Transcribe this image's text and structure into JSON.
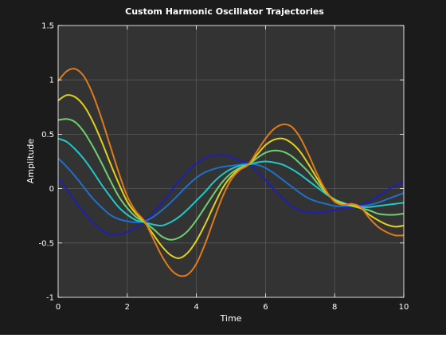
{
  "colors": {
    "figure_bg": "#1b1b1b",
    "axes_bg": "#333333",
    "grid": "#585858",
    "text": "#ffffff"
  },
  "chart_data": {
    "type": "line",
    "title": "Custom Harmonic Oscillator Trajectories",
    "xlabel": "Time",
    "ylabel": "Amplitude",
    "xlim": [
      0,
      10
    ],
    "ylim": [
      -1,
      1.5
    ],
    "xticks": [
      0,
      2,
      4,
      6,
      8,
      10
    ],
    "xtick_labels": [
      "0",
      "2",
      "4",
      "6",
      "8",
      "10"
    ],
    "yticks": [
      -1,
      -0.5,
      0,
      0.5,
      1,
      1.5
    ],
    "ytick_labels": [
      "-1",
      "-0.5",
      "0",
      "0.5",
      "1",
      "1.5"
    ],
    "grid": true,
    "legend": "none",
    "x": [
      0,
      0.25,
      0.5,
      0.75,
      1,
      1.25,
      1.5,
      1.75,
      2,
      2.25,
      2.5,
      2.75,
      3,
      3.25,
      3.5,
      3.75,
      4,
      4.25,
      4.5,
      4.75,
      5,
      5.25,
      5.5,
      5.75,
      6,
      6.25,
      6.5,
      6.75,
      7,
      7.25,
      7.5,
      7.75,
      8,
      8.25,
      8.5,
      8.75,
      9,
      9.25,
      9.5,
      9.75,
      10
    ],
    "series": [
      {
        "color": "#1f1fb3",
        "values": [
          0.1,
          -0.01,
          -0.12,
          -0.22,
          -0.31,
          -0.38,
          -0.42,
          -0.42,
          -0.4,
          -0.36,
          -0.3,
          -0.22,
          -0.13,
          -0.03,
          0.07,
          0.16,
          0.23,
          0.28,
          0.31,
          0.31,
          0.29,
          0.26,
          0.23,
          0.16,
          0.08,
          -0.01,
          -0.09,
          -0.16,
          -0.2,
          -0.22,
          -0.22,
          -0.21,
          -0.2,
          -0.18,
          -0.17,
          -0.15,
          -0.12,
          -0.07,
          -0.02,
          0.03,
          0.06
        ]
      },
      {
        "color": "#1f6fcc",
        "values": [
          0.28,
          0.2,
          0.11,
          0.01,
          -0.09,
          -0.17,
          -0.24,
          -0.28,
          -0.3,
          -0.31,
          -0.3,
          -0.26,
          -0.2,
          -0.13,
          -0.05,
          0.03,
          0.1,
          0.15,
          0.18,
          0.2,
          0.21,
          0.22,
          0.23,
          0.22,
          0.19,
          0.14,
          0.08,
          0.02,
          -0.04,
          -0.09,
          -0.12,
          -0.14,
          -0.16,
          -0.16,
          -0.16,
          -0.16,
          -0.15,
          -0.13,
          -0.1,
          -0.07,
          -0.04
        ]
      },
      {
        "color": "#22c7c7",
        "values": [
          0.46,
          0.43,
          0.36,
          0.27,
          0.16,
          0.04,
          -0.07,
          -0.17,
          -0.24,
          -0.29,
          -0.31,
          -0.33,
          -0.34,
          -0.31,
          -0.26,
          -0.19,
          -0.11,
          -0.03,
          0.06,
          0.13,
          0.18,
          0.21,
          0.22,
          0.24,
          0.25,
          0.24,
          0.22,
          0.18,
          0.13,
          0.07,
          0.01,
          -0.05,
          -0.1,
          -0.13,
          -0.16,
          -0.17,
          -0.17,
          -0.16,
          -0.15,
          -0.14,
          -0.13
        ]
      },
      {
        "color": "#6fcf6f",
        "values": [
          0.63,
          0.64,
          0.61,
          0.52,
          0.39,
          0.24,
          0.08,
          -0.07,
          -0.18,
          -0.26,
          -0.31,
          -0.37,
          -0.44,
          -0.47,
          -0.45,
          -0.39,
          -0.29,
          -0.17,
          -0.05,
          0.06,
          0.14,
          0.19,
          0.22,
          0.28,
          0.33,
          0.35,
          0.34,
          0.3,
          0.23,
          0.15,
          0.05,
          -0.04,
          -0.1,
          -0.14,
          -0.16,
          -0.18,
          -0.2,
          -0.23,
          -0.24,
          -0.24,
          -0.23
        ]
      },
      {
        "color": "#e0d21a",
        "values": [
          0.81,
          0.86,
          0.84,
          0.76,
          0.62,
          0.44,
          0.24,
          0.05,
          -0.12,
          -0.23,
          -0.31,
          -0.42,
          -0.53,
          -0.61,
          -0.64,
          -0.59,
          -0.48,
          -0.33,
          -0.16,
          0.0,
          0.11,
          0.18,
          0.22,
          0.31,
          0.4,
          0.45,
          0.46,
          0.42,
          0.34,
          0.22,
          0.09,
          -0.03,
          -0.11,
          -0.14,
          -0.15,
          -0.18,
          -0.24,
          -0.29,
          -0.33,
          -0.35,
          -0.34
        ]
      },
      {
        "color": "#e07a1a",
        "values": [
          0.99,
          1.08,
          1.1,
          1.03,
          0.87,
          0.65,
          0.4,
          0.15,
          -0.07,
          -0.21,
          -0.3,
          -0.46,
          -0.62,
          -0.74,
          -0.8,
          -0.79,
          -0.69,
          -0.51,
          -0.29,
          -0.08,
          0.08,
          0.17,
          0.22,
          0.34,
          0.46,
          0.55,
          0.59,
          0.57,
          0.47,
          0.31,
          0.13,
          -0.02,
          -0.12,
          -0.15,
          -0.14,
          -0.17,
          -0.27,
          -0.35,
          -0.4,
          -0.43,
          -0.43
        ]
      }
    ]
  }
}
